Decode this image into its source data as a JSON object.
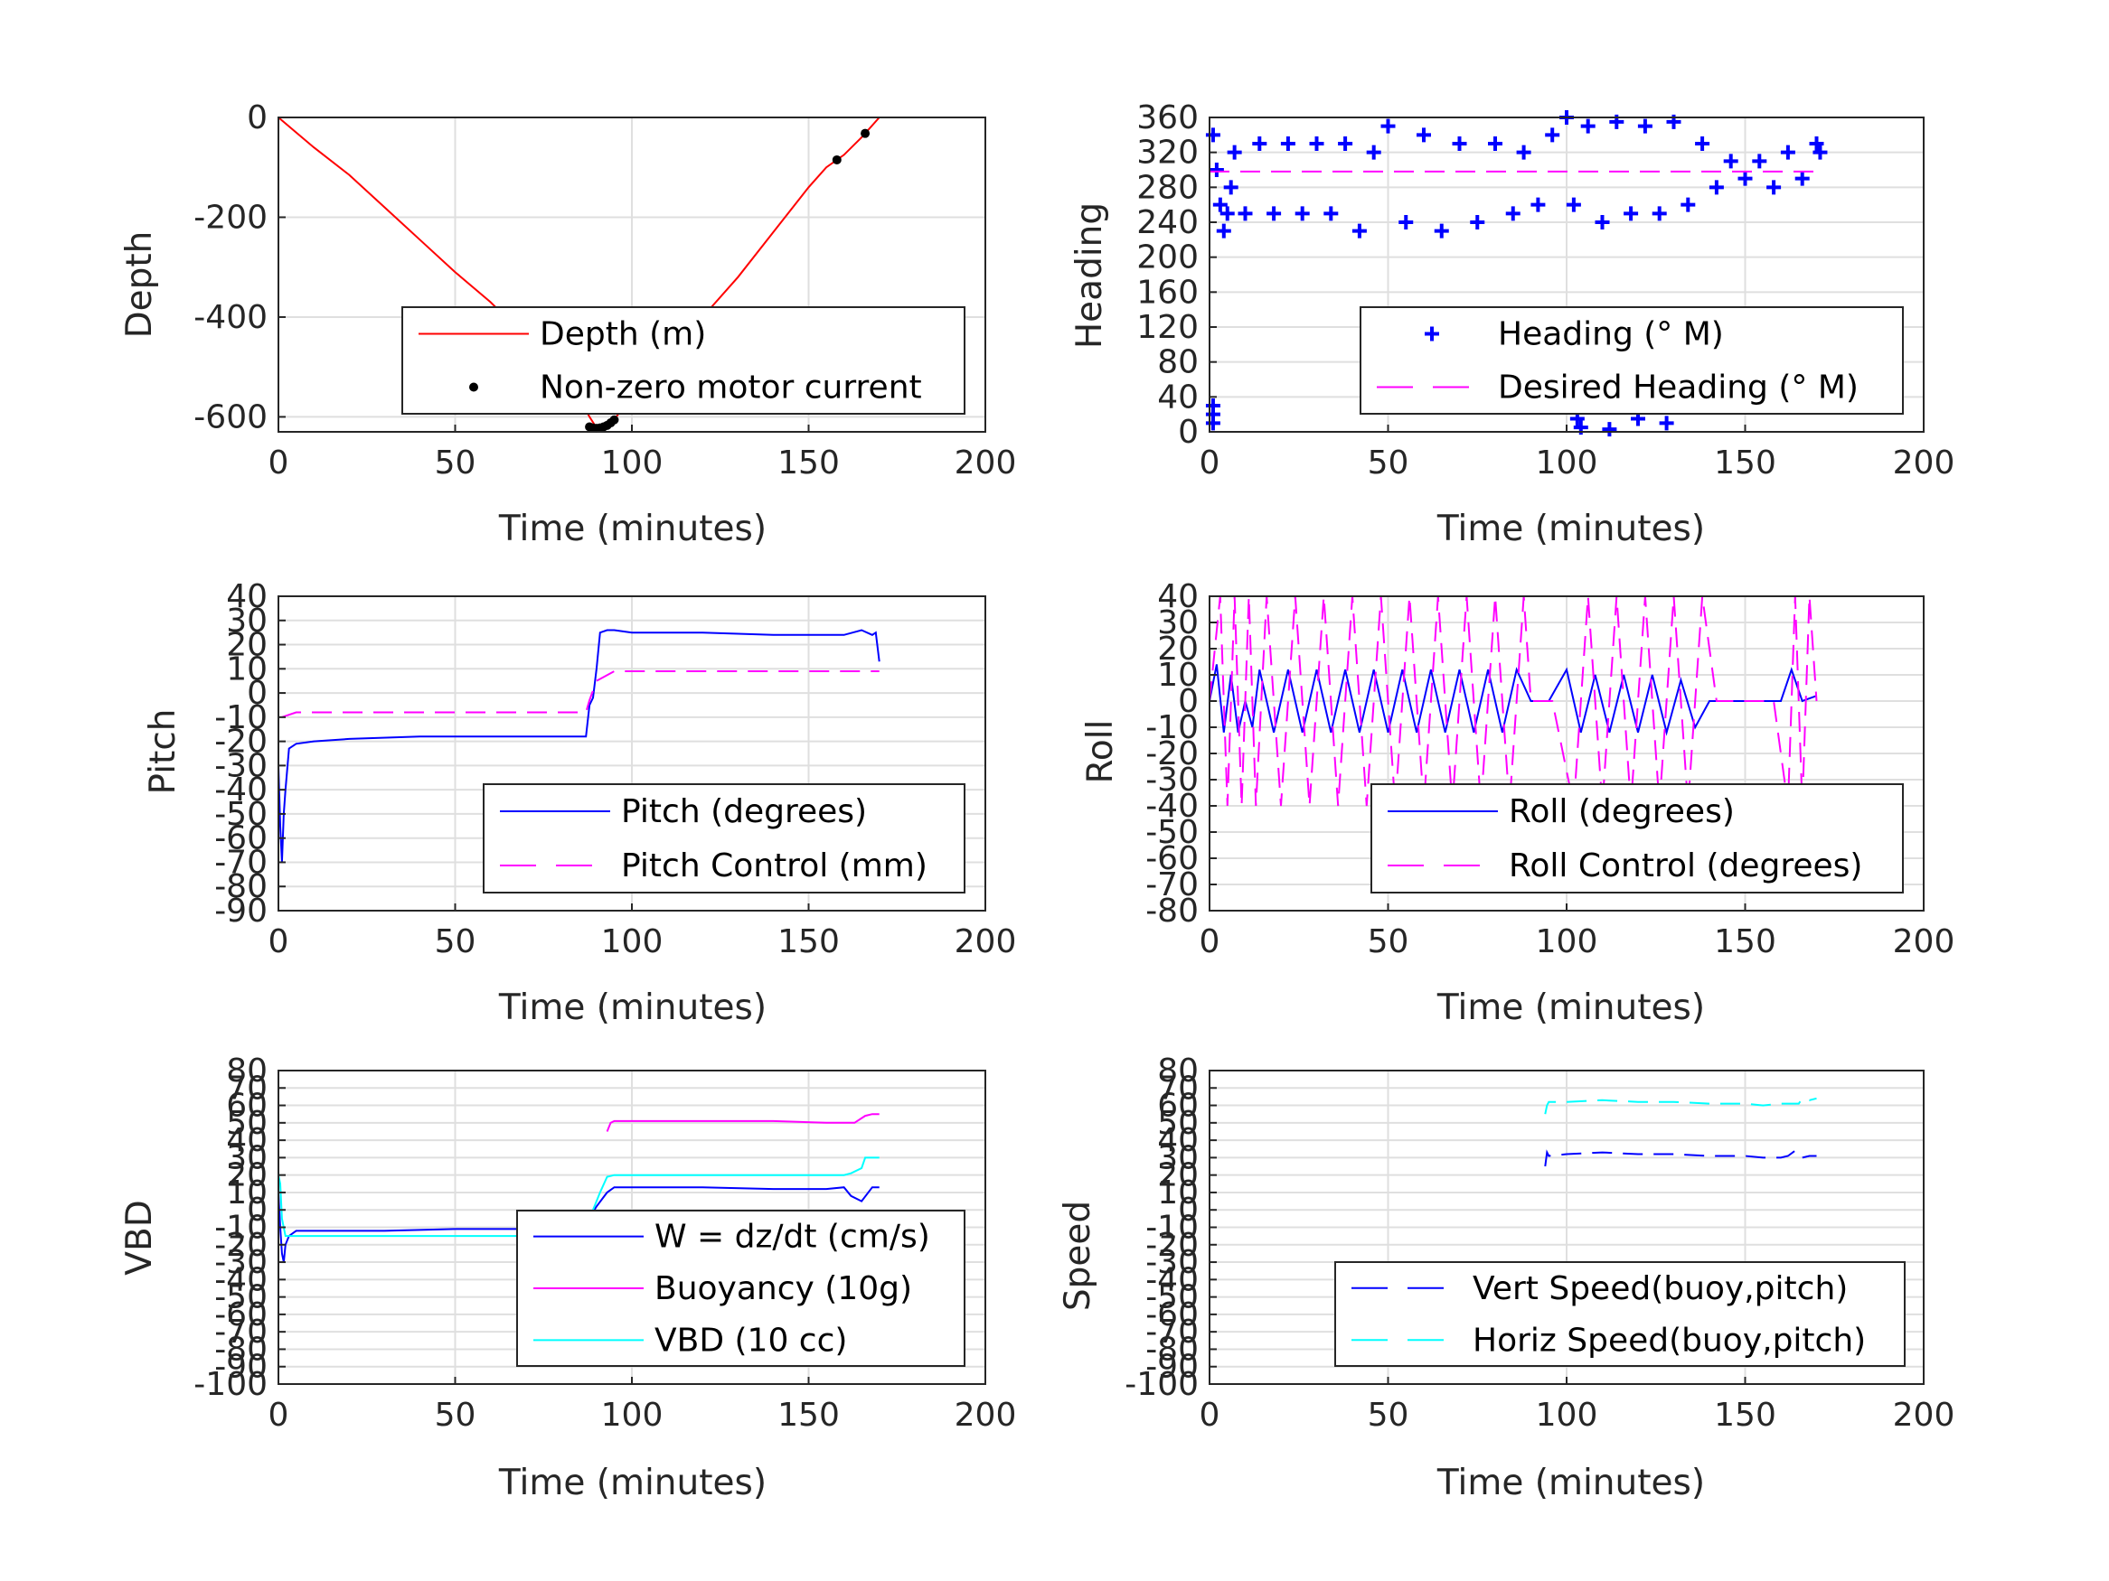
{
  "chart_data": [
    {
      "id": "depth",
      "type": "line",
      "xlabel": "Time (minutes)",
      "ylabel": "Depth",
      "xlim": [
        0,
        200
      ],
      "ylim": [
        -630,
        0
      ],
      "xticks": [
        0,
        50,
        100,
        150,
        200
      ],
      "yticks": [
        -600,
        -400,
        -200,
        0
      ],
      "grid": true,
      "legend_placement": "lower-right",
      "series": [
        {
          "name": "Depth (m)",
          "color": "#ff0000",
          "style": "solid",
          "marker": "none",
          "x": [
            0,
            5,
            10,
            20,
            30,
            40,
            50,
            60,
            70,
            80,
            85,
            88,
            90,
            92,
            95,
            100,
            110,
            120,
            130,
            140,
            150,
            155,
            160,
            165,
            170
          ],
          "y": [
            0,
            -30,
            -60,
            -115,
            -180,
            -245,
            -310,
            -370,
            -440,
            -510,
            -560,
            -600,
            -622,
            -620,
            -605,
            -560,
            -480,
            -400,
            -320,
            -230,
            -140,
            -100,
            -75,
            -40,
            0
          ]
        },
        {
          "name": "Non-zero motor current",
          "color": "#000000",
          "style": "none",
          "marker": "dot",
          "x": [
            88,
            89,
            90,
            91,
            92,
            93,
            94,
            95,
            158,
            166
          ],
          "y": [
            -620,
            -622,
            -623,
            -622,
            -620,
            -617,
            -612,
            -606,
            -85,
            -32
          ]
        }
      ]
    },
    {
      "id": "heading",
      "type": "scatter",
      "xlabel": "Time (minutes)",
      "ylabel": "Heading",
      "xlim": [
        0,
        200
      ],
      "ylim": [
        0,
        360
      ],
      "xticks": [
        0,
        50,
        100,
        150,
        200
      ],
      "yticks": [
        0,
        40,
        80,
        120,
        160,
        200,
        240,
        280,
        320,
        360
      ],
      "grid": true,
      "legend_placement": "lower-right",
      "series": [
        {
          "name": "Heading (° M)",
          "color": "#0000ff",
          "style": "none",
          "marker": "plus",
          "x": [
            1,
            1,
            1,
            1,
            2,
            3,
            4,
            5,
            6,
            7,
            10,
            14,
            18,
            22,
            26,
            30,
            34,
            38,
            42,
            46,
            50,
            55,
            60,
            65,
            70,
            75,
            80,
            85,
            88,
            92,
            96,
            100,
            102,
            103,
            104,
            106,
            110,
            112,
            114,
            118,
            120,
            122,
            126,
            128,
            130,
            134,
            138,
            142,
            146,
            150,
            154,
            158,
            162,
            166,
            170,
            171
          ],
          "y": [
            20,
            30,
            10,
            340,
            300,
            260,
            230,
            250,
            280,
            320,
            250,
            330,
            250,
            330,
            250,
            330,
            250,
            330,
            230,
            320,
            350,
            240,
            340,
            230,
            330,
            240,
            330,
            250,
            320,
            260,
            340,
            360,
            260,
            15,
            5,
            350,
            240,
            3,
            355,
            250,
            15,
            350,
            250,
            10,
            355,
            260,
            330,
            280,
            310,
            290,
            310,
            280,
            320,
            290,
            330,
            320
          ]
        },
        {
          "name": "Desired Heading (° M)",
          "color": "#ff00ff",
          "style": "dashed",
          "marker": "none",
          "x": [
            0,
            170
          ],
          "y": [
            298,
            298
          ]
        }
      ]
    },
    {
      "id": "pitch",
      "type": "line",
      "xlabel": "Time (minutes)",
      "ylabel": "Pitch",
      "xlim": [
        0,
        200
      ],
      "ylim": [
        -90,
        40
      ],
      "xticks": [
        0,
        50,
        100,
        150,
        200
      ],
      "yticks": [
        -90,
        -80,
        -70,
        -60,
        -50,
        -40,
        -30,
        -20,
        -10,
        0,
        10,
        20,
        30,
        40
      ],
      "grid": true,
      "legend_placement": "lower-right",
      "series": [
        {
          "name": "Pitch (degrees)",
          "color": "#0000ff",
          "style": "solid",
          "marker": "none",
          "x": [
            0,
            0.5,
            1,
            1.5,
            2,
            3,
            5,
            10,
            20,
            40,
            60,
            80,
            87,
            88,
            89,
            90,
            91,
            93,
            95,
            100,
            120,
            140,
            160,
            165,
            168,
            169,
            170
          ],
          "y": [
            -30,
            -55,
            -70,
            -50,
            -40,
            -23,
            -21,
            -20,
            -19,
            -18,
            -18,
            -18,
            -18,
            -5,
            -2,
            10,
            25,
            26,
            26,
            25,
            25,
            24,
            24,
            26,
            24,
            25,
            13
          ]
        },
        {
          "name": "Pitch Control (mm)",
          "color": "#ff00ff",
          "style": "dashed",
          "marker": "none",
          "x": [
            1,
            5,
            20,
            40,
            60,
            80,
            87,
            88,
            90,
            95,
            120,
            150,
            170
          ],
          "y": [
            -10,
            -8,
            -8,
            -8,
            -8,
            -8,
            -8,
            -3,
            5,
            9,
            9,
            9,
            9
          ]
        }
      ]
    },
    {
      "id": "roll",
      "type": "line",
      "xlabel": "Time (minutes)",
      "ylabel": "Roll",
      "xlim": [
        0,
        200
      ],
      "ylim": [
        -80,
        40
      ],
      "xticks": [
        0,
        50,
        100,
        150,
        200
      ],
      "yticks": [
        -80,
        -70,
        -60,
        -50,
        -40,
        -30,
        -20,
        -10,
        0,
        10,
        20,
        30,
        40
      ],
      "grid": true,
      "legend_placement": "lower-right",
      "series": [
        {
          "name": "Roll (degrees)",
          "color": "#0000ff",
          "style": "solid",
          "marker": "none",
          "x": [
            0,
            2,
            4,
            6,
            8,
            10,
            12,
            14,
            18,
            22,
            26,
            30,
            34,
            38,
            42,
            46,
            50,
            54,
            58,
            62,
            66,
            70,
            74,
            78,
            82,
            86,
            90,
            95,
            100,
            104,
            108,
            112,
            116,
            120,
            124,
            128,
            132,
            136,
            140,
            150,
            160,
            163,
            166,
            170
          ],
          "y": [
            0,
            14,
            -12,
            10,
            -12,
            0,
            -10,
            12,
            -12,
            12,
            -12,
            12,
            -12,
            12,
            -12,
            12,
            -12,
            12,
            -12,
            12,
            -12,
            12,
            -12,
            12,
            -12,
            12,
            0,
            0,
            12,
            -12,
            10,
            -12,
            10,
            -12,
            10,
            -12,
            8,
            -10,
            0,
            0,
            0,
            12,
            0,
            2
          ]
        },
        {
          "name": "Roll Control (degrees)",
          "color": "#ff00ff",
          "style": "dashed",
          "marker": "none",
          "x": [
            0,
            3,
            5,
            7,
            9,
            11,
            13,
            16,
            20,
            24,
            28,
            32,
            36,
            40,
            44,
            48,
            52,
            56,
            60,
            64,
            68,
            72,
            76,
            80,
            84,
            88,
            90,
            96,
            102,
            106,
            110,
            114,
            118,
            122,
            126,
            130,
            134,
            138,
            142,
            150,
            158,
            162,
            164,
            166,
            168,
            170
          ],
          "y": [
            0,
            40,
            -40,
            40,
            -40,
            40,
            -40,
            40,
            -40,
            40,
            -40,
            40,
            -40,
            40,
            -40,
            40,
            -40,
            40,
            -40,
            40,
            -40,
            40,
            -40,
            40,
            -40,
            40,
            0,
            0,
            -40,
            40,
            -40,
            40,
            -40,
            40,
            -40,
            40,
            -40,
            40,
            0,
            0,
            0,
            -40,
            40,
            -40,
            40,
            0
          ]
        }
      ]
    },
    {
      "id": "vbd",
      "type": "line",
      "xlabel": "Time (minutes)",
      "ylabel": "VBD",
      "xlim": [
        0,
        200
      ],
      "ylim": [
        -100,
        80
      ],
      "xticks": [
        0,
        50,
        100,
        150,
        200
      ],
      "yticks": [
        -100,
        -90,
        -80,
        -70,
        -60,
        -50,
        -40,
        -30,
        -20,
        -10,
        0,
        10,
        20,
        30,
        40,
        50,
        60,
        70,
        80
      ],
      "grid": true,
      "legend_placement": "lower-right",
      "series": [
        {
          "name": "W = dz/dt (cm/s)",
          "color": "#0000ff",
          "style": "solid",
          "marker": "none",
          "x": [
            0,
            0.5,
            1,
            1.5,
            2,
            3,
            5,
            10,
            30,
            50,
            70,
            85,
            87,
            90,
            93,
            95,
            100,
            120,
            140,
            155,
            160,
            162,
            165,
            168,
            170
          ],
          "y": [
            10,
            -10,
            -25,
            -30,
            -20,
            -15,
            -12,
            -12,
            -12,
            -11,
            -11,
            -10,
            -8,
            2,
            10,
            13,
            13,
            13,
            12,
            12,
            13,
            8,
            5,
            13,
            13
          ]
        },
        {
          "name": "Buoyancy (10g)",
          "color": "#ff00ff",
          "style": "solid",
          "marker": "none",
          "x": [
            93,
            94,
            95,
            100,
            120,
            140,
            155,
            160,
            163,
            166,
            168,
            170
          ],
          "y": [
            45,
            50,
            51,
            51,
            51,
            51,
            50,
            50,
            50,
            54,
            55,
            55
          ]
        },
        {
          "name": "VBD (10 cc)",
          "color": "#00ffff",
          "style": "solid",
          "marker": "none",
          "x": [
            0,
            0.5,
            1,
            2,
            4,
            10,
            30,
            50,
            70,
            85,
            88,
            91,
            93,
            95,
            100,
            120,
            140,
            155,
            160,
            162,
            165,
            166,
            170
          ],
          "y": [
            20,
            15,
            -5,
            -15,
            -15,
            -15,
            -15,
            -15,
            -15,
            -15,
            -5,
            10,
            19,
            20,
            20,
            20,
            20,
            20,
            20,
            21,
            24,
            30,
            30
          ]
        }
      ]
    },
    {
      "id": "speed",
      "type": "line",
      "xlabel": "Time (minutes)",
      "ylabel": "Speed",
      "xlim": [
        0,
        200
      ],
      "ylim": [
        -100,
        80
      ],
      "xticks": [
        0,
        50,
        100,
        150,
        200
      ],
      "yticks": [
        -100,
        -90,
        -80,
        -70,
        -60,
        -50,
        -40,
        -30,
        -20,
        -10,
        0,
        10,
        20,
        30,
        40,
        50,
        60,
        70,
        80
      ],
      "grid": true,
      "legend_placement": "lower-right",
      "series": [
        {
          "name": "Vert Speed(buoy,pitch)",
          "color": "#0000ff",
          "style": "dashed",
          "marker": "none",
          "x": [
            94,
            94.5,
            95,
            100,
            110,
            120,
            130,
            140,
            150,
            155,
            160,
            162,
            164,
            166,
            168,
            170
          ],
          "y": [
            25,
            33,
            31,
            32,
            33,
            32,
            32,
            31,
            31,
            30,
            30,
            31,
            34,
            30,
            31,
            31
          ]
        },
        {
          "name": "Horiz Speed(buoy,pitch)",
          "color": "#00ffff",
          "style": "dashed",
          "marker": "none",
          "x": [
            94,
            94.5,
            95,
            100,
            110,
            120,
            130,
            140,
            150,
            155,
            160,
            165,
            166,
            168,
            170
          ],
          "y": [
            55,
            60,
            62,
            62,
            63,
            62,
            62,
            61,
            61,
            60,
            61,
            61,
            64,
            63,
            64
          ]
        }
      ]
    }
  ]
}
